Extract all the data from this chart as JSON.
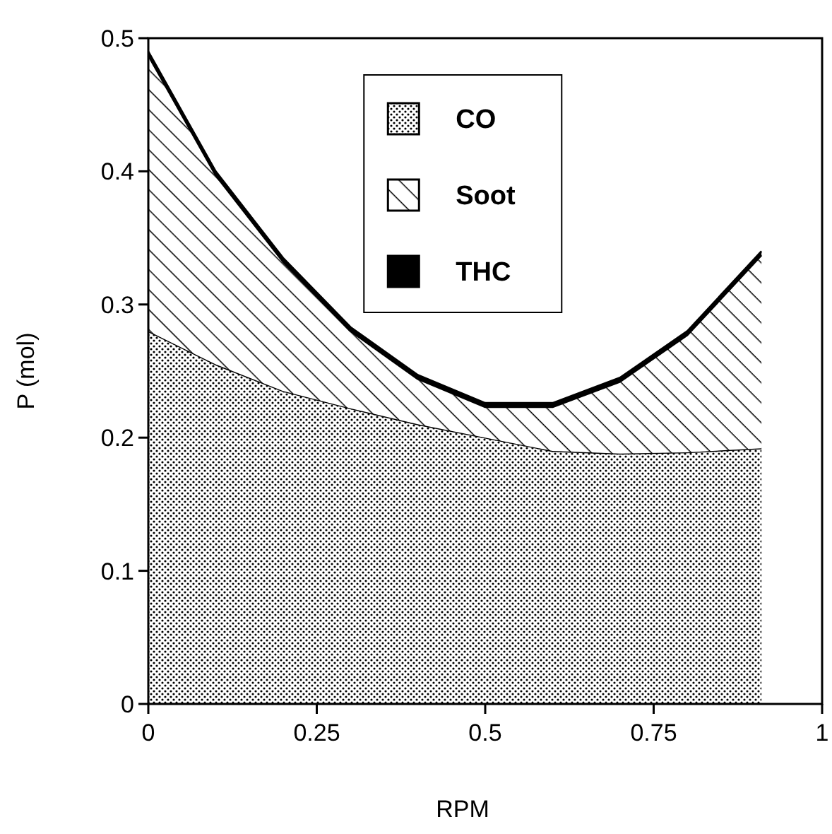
{
  "chart_data": {
    "type": "area",
    "stacked": true,
    "xlabel": "RPM",
    "ylabel": "P (mol)",
    "x": [
      0,
      0.1,
      0.2,
      0.3,
      0.4,
      0.5,
      0.6,
      0.7,
      0.8,
      0.91
    ],
    "series": [
      {
        "name": "CO",
        "color": "#000000",
        "values": [
          0.28,
          0.255,
          0.235,
          0.222,
          0.21,
          0.2,
          0.19,
          0.188,
          0.189,
          0.192
        ]
      },
      {
        "name": "Soot",
        "color": "#000000",
        "values": [
          0.207,
          0.142,
          0.097,
          0.058,
          0.034,
          0.023,
          0.033,
          0.054,
          0.088,
          0.145
        ]
      },
      {
        "name": "THC",
        "color": "#000000",
        "values": [
          0.003,
          0.003,
          0.003,
          0.003,
          0.003,
          0.003,
          0.003,
          0.003,
          0.003,
          0.003
        ]
      }
    ],
    "xlim": [
      0,
      1
    ],
    "xticks": [
      0,
      0.25,
      0.5,
      0.75,
      1
    ],
    "ylim": [
      0,
      0.5
    ],
    "yticks": [
      0,
      0.1,
      0.2,
      0.3,
      0.4,
      0.5
    ],
    "grid": false,
    "legend": "top"
  }
}
